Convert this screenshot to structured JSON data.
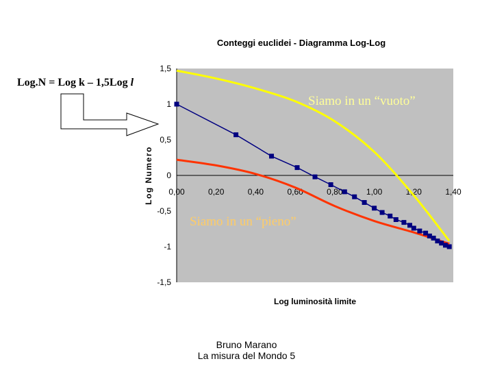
{
  "chart_data": {
    "type": "line",
    "title": "Conteggi euclidei  - Diagramma Log-Log",
    "xlabel": "Log luminosità limite",
    "ylabel": "Log Numero",
    "xlim": [
      0,
      1.4
    ],
    "ylim": [
      -1.5,
      1.5
    ],
    "x_ticks": [
      "0,00",
      "0,20",
      "0,40",
      "0,60",
      "0,80",
      "1,00",
      "1,20",
      "1,40"
    ],
    "y_ticks": [
      "1,5",
      "1",
      "0,5",
      "0",
      "-0,5",
      "-1",
      "-1,5"
    ],
    "grid": false,
    "legend": "none",
    "series": [
      {
        "color": "#000080",
        "marker": "square",
        "x": [
          0.0,
          0.3,
          0.48,
          0.61,
          0.7,
          0.78,
          0.85,
          0.9,
          0.95,
          1.0,
          1.04,
          1.08,
          1.11,
          1.15,
          1.18,
          1.2,
          1.23,
          1.26,
          1.28,
          1.3,
          1.32,
          1.34,
          1.36,
          1.38
        ],
        "y": [
          1.0,
          0.57,
          0.27,
          0.11,
          -0.02,
          -0.13,
          -0.23,
          -0.3,
          -0.38,
          -0.46,
          -0.52,
          -0.57,
          -0.62,
          -0.66,
          -0.7,
          -0.74,
          -0.78,
          -0.81,
          -0.85,
          -0.88,
          -0.92,
          -0.95,
          -0.98,
          -1.0
        ]
      },
      {
        "color": "#ffff00",
        "x": [
          0.0,
          0.2,
          0.4,
          0.6,
          0.8,
          1.0,
          1.2,
          1.38
        ],
        "y": [
          1.47,
          1.36,
          1.22,
          1.04,
          0.76,
          0.33,
          -0.28,
          -0.92
        ]
      },
      {
        "color": "#ff3300",
        "x": [
          0.0,
          0.2,
          0.4,
          0.6,
          0.8,
          1.0,
          1.2,
          1.38
        ],
        "y": [
          0.22,
          0.14,
          0.02,
          -0.17,
          -0.43,
          -0.64,
          -0.8,
          -0.96
        ]
      }
    ],
    "annotations": [
      {
        "text": "Siamo in un “vuoto”",
        "color": "#ffff99"
      },
      {
        "text": "Siamo in un “pieno”",
        "color": "#ffcc66"
      }
    ],
    "formula": {
      "prefix": "Log.N = Log k – 1,5Log ",
      "var": "l"
    },
    "colors": {
      "plot_bg": "#c0c0c0",
      "axis": "#000000",
      "arrow_outline": "#000000",
      "arrow_fill": "#ffffff"
    }
  },
  "footer": {
    "line1": "Bruno Marano",
    "line2": "La misura del Mondo 5"
  }
}
